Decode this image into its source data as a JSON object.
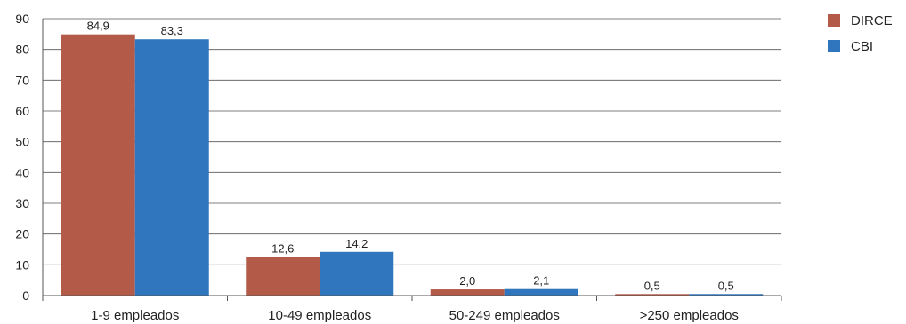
{
  "chart_data": {
    "type": "bar",
    "categories": [
      "1-9 empleados",
      "10-49 empleados",
      "50-249 empleados",
      ">250 empleados"
    ],
    "series": [
      {
        "name": "DIRCE",
        "color": "#b35a48",
        "values": [
          84.9,
          12.6,
          2.0,
          0.5
        ],
        "labels": [
          "84,9",
          "12,6",
          "2,0",
          "0,5"
        ]
      },
      {
        "name": "CBI",
        "color": "#2f76be",
        "values": [
          83.3,
          14.2,
          2.1,
          0.5
        ],
        "labels": [
          "83,3",
          "14,2",
          "2,1",
          "0,5"
        ]
      }
    ],
    "ylim": [
      0,
      90
    ],
    "yticks": [
      0,
      10,
      20,
      30,
      40,
      50,
      60,
      70,
      80,
      90
    ],
    "grid": true,
    "legend": "top-right",
    "gridColor": "#555555"
  }
}
